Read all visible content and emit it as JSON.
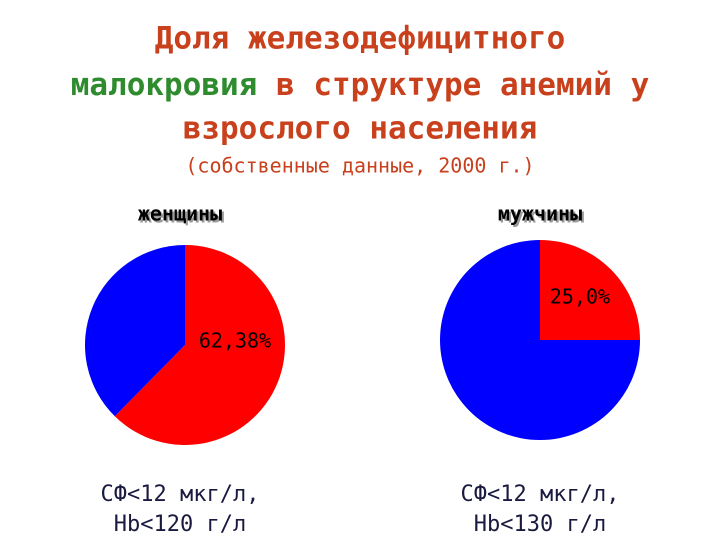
{
  "title": [
    {
      "text": "Доля железодефицитного",
      "color": "#c8401c"
    },
    {
      "text": "малокровия",
      "color": "#2e8b2e"
    },
    {
      "text": "в структуре анемий у",
      "color": "#c8401c"
    },
    {
      "text": "взрослого населения",
      "color": "#c8401c"
    }
  ],
  "subtitle": "(собственные данные, 2000 г.)",
  "chart_data": [
    {
      "type": "pie",
      "title": "женщины",
      "values": [
        62.38,
        37.62
      ],
      "value_labels": [
        "62,38%",
        null
      ],
      "colors": [
        "#ff0000",
        "#0000ff"
      ],
      "footnote": [
        "СФ<12 мкг/л,",
        "Hb<120 г/л"
      ]
    },
    {
      "type": "pie",
      "title": "мужчины",
      "values": [
        25.0,
        75.0
      ],
      "value_labels": [
        "25,0%",
        null
      ],
      "colors": [
        "#ff0000",
        "#0000ff"
      ],
      "footnote": [
        "СФ<12 мкг/л,",
        "Hb<130 г/л"
      ]
    }
  ]
}
